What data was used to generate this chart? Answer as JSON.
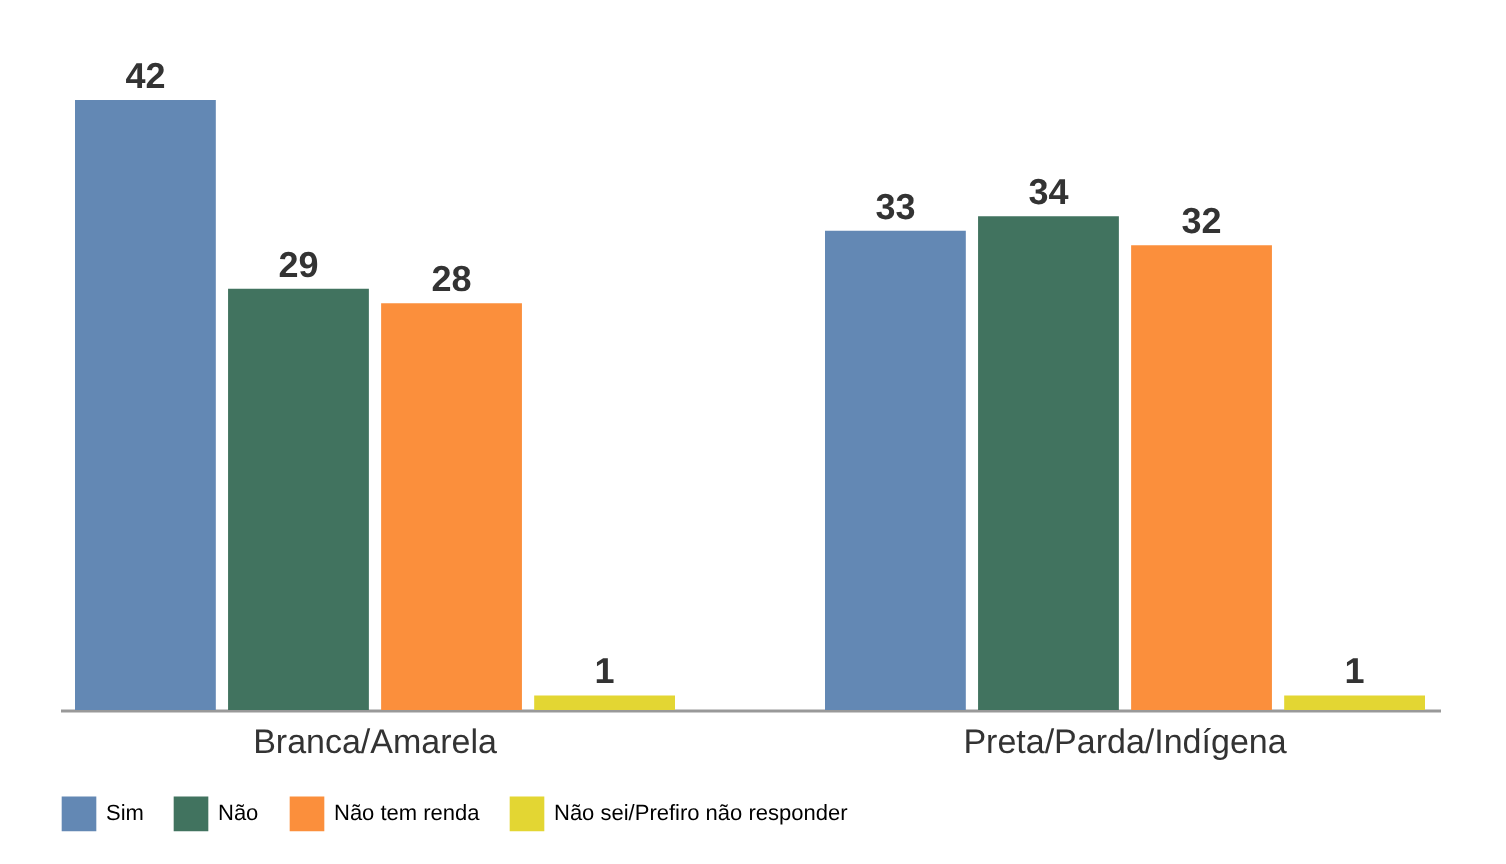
{
  "chart_data": {
    "type": "bar",
    "categories": [
      "Branca/Amarela",
      "Preta/Parda/Indígena"
    ],
    "series": [
      {
        "name": "Sim",
        "color": "#6388b4",
        "values": [
          42,
          33
        ]
      },
      {
        "name": "Não",
        "color": "#41735f",
        "values": [
          29,
          34
        ]
      },
      {
        "name": "Não tem renda",
        "color": "#fb8f3c",
        "values": [
          28,
          32
        ]
      },
      {
        "name": "Não sei/Prefiro não responder",
        "color": "#e3d633",
        "values": [
          1,
          1
        ]
      }
    ],
    "data_labels": true,
    "grid": false,
    "legend": "bottom"
  }
}
